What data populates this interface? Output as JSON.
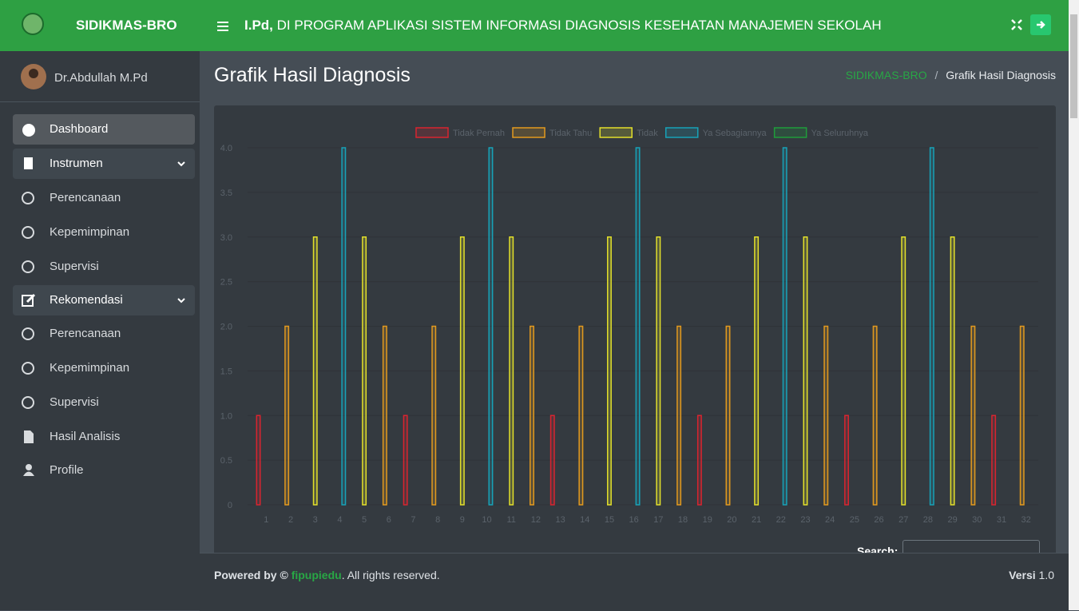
{
  "header": {
    "brand": "SIDIKMAS-BRO",
    "marquee_bold": "I.Pd,",
    "marquee": "DI PROGRAM APLIKASI SISTEM INFORMASI DIAGNOSIS KESEHATAN MANAJEMEN SEKOLAH"
  },
  "user": {
    "name": "Dr.Abdullah M.Pd"
  },
  "menu": [
    {
      "label": "Dashboard"
    },
    {
      "label": "Instrumen"
    },
    {
      "label": "Perencanaan"
    },
    {
      "label": "Kepemimpinan"
    },
    {
      "label": "Supervisi"
    },
    {
      "label": "Rekomendasi"
    },
    {
      "label": "Perencanaan"
    },
    {
      "label": "Kepemimpinan"
    },
    {
      "label": "Supervisi"
    },
    {
      "label": "Hasil Analisis"
    },
    {
      "label": "Profile"
    }
  ],
  "page": {
    "title": "Grafik Hasil Diagnosis",
    "breadcrumb": [
      "SIDIKMAS-BRO",
      "/",
      "Grafik Hasil Diagnosis"
    ]
  },
  "chart_data": {
    "type": "bar",
    "grid": true,
    "categories": [
      "1",
      "2",
      "3",
      "4",
      "5",
      "6",
      "7",
      "8",
      "9",
      "10",
      "11",
      "12",
      "13",
      "14",
      "15",
      "16",
      "17",
      "18",
      "19",
      "20",
      "21",
      "22",
      "23",
      "24",
      "25",
      "26",
      "27",
      "28",
      "29",
      "30",
      "31",
      "32"
    ],
    "ylim": [
      0,
      4
    ],
    "yticks": [
      0,
      0.5,
      {
        "value": 1,
        "label": "1.0"
      },
      1.5,
      {
        "value": 2,
        "label": "2.0"
      },
      2.5,
      {
        "value": 3,
        "label": "3.0"
      },
      3.5,
      {
        "value": 4,
        "label": "4.0"
      }
    ],
    "series": [
      {
        "name": "Tidak Pernah",
        "color": "#d9242f",
        "values": [
          1,
          null,
          null,
          null,
          null,
          null,
          1,
          null,
          null,
          null,
          null,
          null,
          1,
          null,
          null,
          null,
          null,
          null,
          1,
          null,
          null,
          null,
          null,
          null,
          1,
          null,
          null,
          null,
          null,
          null,
          1,
          null
        ]
      },
      {
        "name": "Tidak Tahu",
        "color": "#e39a1e",
        "values": [
          null,
          2,
          null,
          null,
          null,
          2,
          null,
          2,
          null,
          null,
          null,
          2,
          null,
          2,
          null,
          null,
          null,
          2,
          null,
          2,
          null,
          null,
          null,
          2,
          null,
          2,
          null,
          null,
          null,
          2,
          null,
          2
        ]
      },
      {
        "name": "Tidak",
        "color": "#e3e02a",
        "values": [
          null,
          null,
          3,
          null,
          3,
          null,
          null,
          null,
          3,
          null,
          3,
          null,
          null,
          null,
          3,
          null,
          3,
          null,
          null,
          null,
          3,
          null,
          3,
          null,
          null,
          null,
          3,
          null,
          3,
          null,
          null,
          null
        ]
      },
      {
        "name": "Ya Sebagiannya",
        "color": "#17a2b8",
        "values": [
          null,
          null,
          null,
          4,
          null,
          null,
          null,
          null,
          null,
          4,
          null,
          null,
          null,
          null,
          null,
          4,
          null,
          null,
          null,
          null,
          null,
          4,
          null,
          null,
          null,
          null,
          null,
          4,
          null,
          null,
          null,
          null
        ]
      },
      {
        "name": "Ya Seluruhnya",
        "color": "#1f9d3a",
        "values": [
          null,
          null,
          null,
          null,
          null,
          null,
          null,
          null,
          null,
          null,
          null,
          null,
          null,
          null,
          null,
          null,
          null,
          null,
          null,
          null,
          null,
          null,
          null,
          null,
          null,
          null,
          null,
          null,
          null,
          null,
          null,
          null
        ]
      }
    ]
  },
  "table": {
    "search_label": "Search:"
  },
  "footer": {
    "powered": "Powered by ©",
    "link": "fipupiedu",
    "rights": ". All rights reserved.",
    "version_label": "Versi",
    "version": "1.0"
  }
}
